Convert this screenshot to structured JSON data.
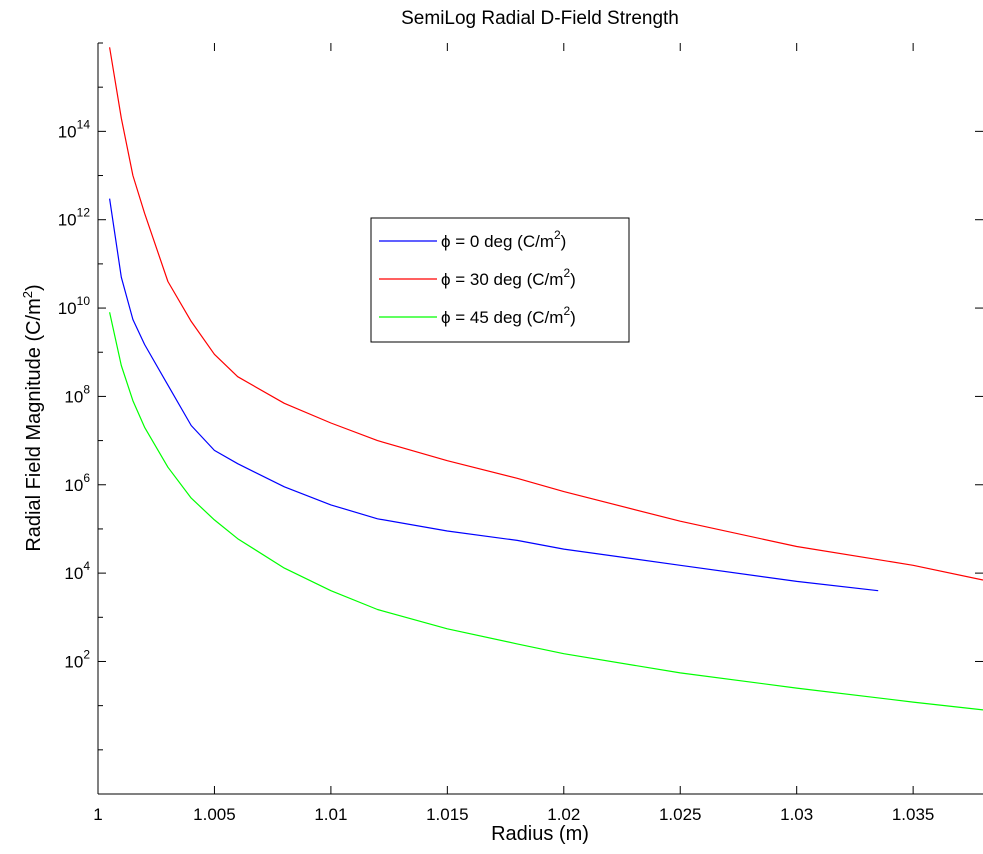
{
  "chart_data": {
    "type": "line",
    "title": "SemiLog Radial D-Field Strength",
    "xlabel": "Radius (m)",
    "ylabel_main": "Radial Field Magnitude (C/m",
    "ylabel_sup": "2",
    "ylabel_tail": ")",
    "xlim": [
      1.0,
      1.038
    ],
    "ylim": [
      0.1,
      1e+16
    ],
    "yscale": "log",
    "grid": false,
    "legend_position": "center-inside",
    "x_ticks": [
      1,
      1.005,
      1.01,
      1.015,
      1.02,
      1.025,
      1.03,
      1.035
    ],
    "x_tick_labels": [
      "1",
      "1.005",
      "1.01",
      "1.015",
      "1.02",
      "1.025",
      "1.03",
      "1.035"
    ],
    "y_ticks": [
      2,
      4,
      6,
      8,
      10,
      12,
      14
    ],
    "y_tick_labels": [
      {
        "base": "10",
        "exp": "2"
      },
      {
        "base": "10",
        "exp": "4"
      },
      {
        "base": "10",
        "exp": "6"
      },
      {
        "base": "10",
        "exp": "8"
      },
      {
        "base": "10",
        "exp": "10"
      },
      {
        "base": "10",
        "exp": "12"
      },
      {
        "base": "10",
        "exp": "14"
      }
    ],
    "series": [
      {
        "name": "ϕ = 0 deg (C/m",
        "name_sup": "2",
        "name_tail": ")",
        "color": "#0000ff",
        "x": [
          1.0005,
          1.001,
          1.0015,
          1.002,
          1.003,
          1.004,
          1.005,
          1.006,
          1.008,
          1.01,
          1.012,
          1.015,
          1.018,
          1.02,
          1.025,
          1.03,
          1.0335
        ],
        "y": [
          3000000000000.0,
          50000000000.0,
          5500000000.0,
          1500000000.0,
          180000000.0,
          22000000.0,
          6000000.0,
          3000000.0,
          900000.0,
          350000.0,
          170000.0,
          90000.0,
          55000.0,
          35000.0,
          15000.0,
          6500.0,
          4000.0
        ]
      },
      {
        "name": "ϕ = 30 deg (C/m",
        "name_sup": "2",
        "name_tail": ")",
        "color": "#ff0000",
        "x": [
          1.0005,
          1.001,
          1.0015,
          1.002,
          1.003,
          1.004,
          1.005,
          1.006,
          1.008,
          1.01,
          1.012,
          1.015,
          1.018,
          1.02,
          1.025,
          1.03,
          1.035,
          1.038
        ],
        "y": [
          8000000000000000.0,
          200000000000000.0,
          10000000000000.0,
          1400000000000.0,
          40000000000.0,
          5000000000.0,
          900000000.0,
          280000000.0,
          70000000.0,
          25000000.0,
          10000000.0,
          3500000.0,
          1400000.0,
          700000.0,
          150000.0,
          40000.0,
          15000.0,
          7000.0
        ]
      },
      {
        "name": "ϕ = 45 deg (C/m",
        "name_sup": "2",
        "name_tail": ")",
        "color": "#00ff00",
        "x": [
          1.0005,
          1.001,
          1.0015,
          1.002,
          1.003,
          1.004,
          1.005,
          1.006,
          1.008,
          1.01,
          1.012,
          1.015,
          1.018,
          1.02,
          1.025,
          1.03,
          1.035,
          1.038
        ],
        "y": [
          8000000000.0,
          500000000.0,
          80000000.0,
          20000000.0,
          2500000.0,
          500000.0,
          160000.0,
          60000.0,
          13000.0,
          4000.0,
          1500.0,
          550,
          250,
          150,
          55,
          25,
          12,
          8
        ]
      }
    ]
  }
}
